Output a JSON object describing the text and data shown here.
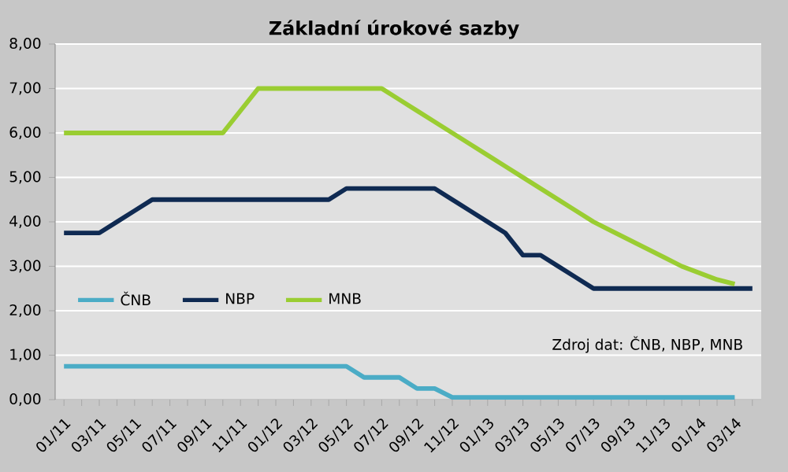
{
  "chart_data": {
    "type": "line",
    "title": "Základní úrokové sazby",
    "categories": [
      "01/11",
      null,
      "03/11",
      null,
      "05/11",
      null,
      "07/11",
      null,
      "09/11",
      null,
      "11/11",
      null,
      "01/12",
      null,
      "03/12",
      null,
      "05/12",
      null,
      "07/12",
      null,
      "09/12",
      null,
      "11/12",
      null,
      "01/13",
      null,
      "03/13",
      null,
      "05/13",
      null,
      "07/13",
      null,
      "09/13",
      null,
      "11/13",
      null,
      "01/14",
      null,
      "03/14",
      null
    ],
    "series": [
      {
        "name": "ČNB",
        "color": "#4bacc6",
        "values": [
          0.75,
          0.75,
          0.75,
          0.75,
          0.75,
          0.75,
          0.75,
          0.75,
          0.75,
          0.75,
          0.75,
          0.75,
          0.75,
          0.75,
          0.75,
          0.75,
          0.75,
          0.5,
          0.5,
          0.5,
          0.25,
          0.25,
          0.05,
          0.05,
          0.05,
          0.05,
          0.05,
          0.05,
          0.05,
          0.05,
          0.05,
          0.05,
          0.05,
          0.05,
          0.05,
          0.05,
          0.05,
          0.05,
          0.05,
          null
        ]
      },
      {
        "name": "NBP",
        "color": "#0f2a52",
        "values": [
          3.75,
          3.75,
          3.75,
          4.0,
          4.25,
          4.5,
          4.5,
          4.5,
          4.5,
          4.5,
          4.5,
          4.5,
          4.5,
          4.5,
          4.5,
          4.5,
          4.75,
          4.75,
          4.75,
          4.75,
          4.75,
          4.75,
          4.5,
          4.25,
          4.0,
          3.75,
          3.25,
          3.25,
          3.0,
          2.75,
          2.5,
          2.5,
          2.5,
          2.5,
          2.5,
          2.5,
          2.5,
          2.5,
          2.5,
          2.5
        ]
      },
      {
        "name": "MNB",
        "color": "#9acd32",
        "values": [
          6.0,
          6.0,
          6.0,
          6.0,
          6.0,
          6.0,
          6.0,
          6.0,
          6.0,
          6.0,
          6.5,
          7.0,
          7.0,
          7.0,
          7.0,
          7.0,
          7.0,
          7.0,
          7.0,
          6.75,
          6.5,
          6.25,
          6.0,
          5.75,
          5.5,
          5.25,
          5.0,
          4.75,
          4.5,
          4.25,
          4.0,
          3.8,
          3.6,
          3.4,
          3.2,
          3.0,
          2.85,
          2.7,
          2.6,
          null
        ]
      }
    ],
    "ylim": [
      0,
      8
    ],
    "yticks": [
      {
        "value": 0,
        "label": "0,00"
      },
      {
        "value": 1,
        "label": "1,00"
      },
      {
        "value": 2,
        "label": "2,00"
      },
      {
        "value": 3,
        "label": "3,00"
      },
      {
        "value": 4,
        "label": "4,00"
      },
      {
        "value": 5,
        "label": "5,00"
      },
      {
        "value": 6,
        "label": "6,00"
      },
      {
        "value": 7,
        "label": "7,00"
      },
      {
        "value": 8,
        "label": "8,00"
      }
    ],
    "grid": "y",
    "legend": "left",
    "marker": "none",
    "line_style": "solid",
    "annotations": [
      "Zdroj dat: ČNB, NBP, MNB"
    ]
  }
}
